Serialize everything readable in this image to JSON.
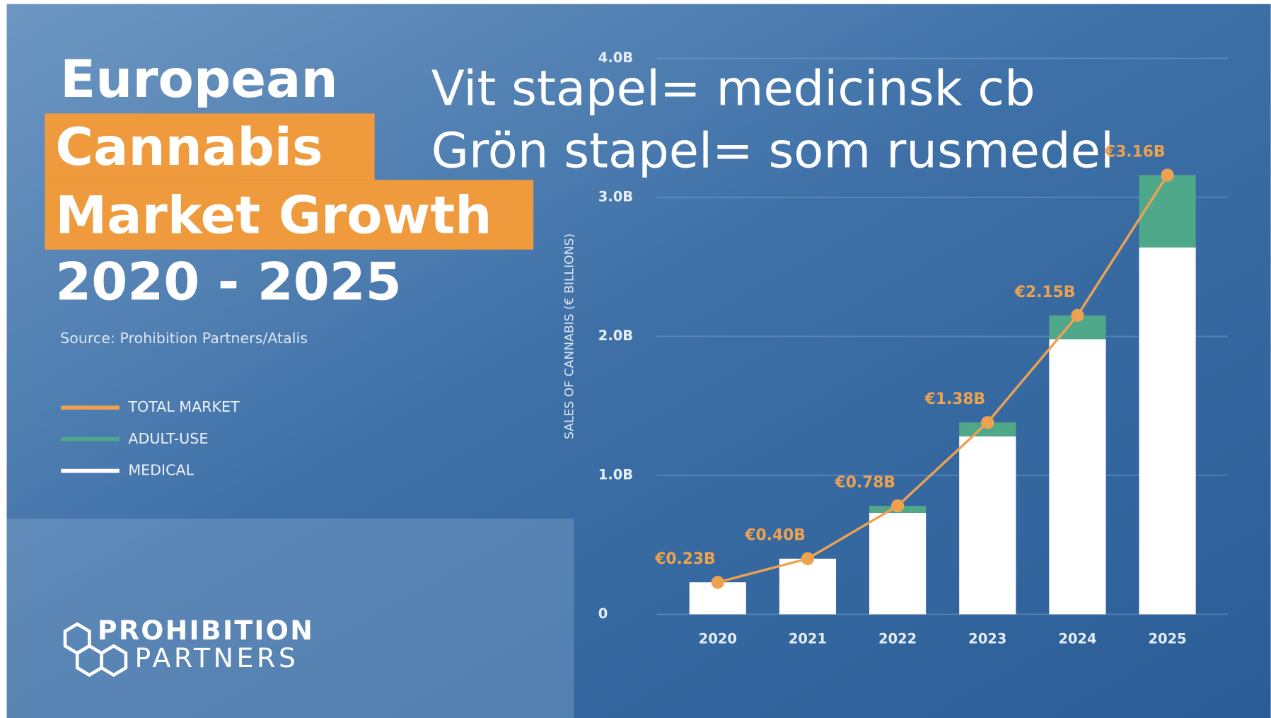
{
  "chart_data": {
    "type": "bar",
    "stacked": true,
    "title_lines": [
      "European",
      "Cannabis",
      "Market Growth"
    ],
    "subtitle": "2020 - 2025",
    "source": "Source: Prohibition Partners/Atalis",
    "annotations": [
      "Vit stapel= medicinsk cb",
      "Grön stapel= som rusmedel"
    ],
    "logo": [
      "PROHIBITION",
      "PARTNERS"
    ],
    "ylabel": "SALES OF CANNABIS (€ BILLIONS)",
    "categories": [
      "2020",
      "2021",
      "2022",
      "2023",
      "2024",
      "2025"
    ],
    "series": [
      {
        "name": "TOTAL MARKET",
        "type": "line",
        "color": "#eea24f",
        "values": [
          0.23,
          0.4,
          0.78,
          1.38,
          2.15,
          3.16
        ],
        "value_labels": [
          "€0.23B",
          "€0.40B",
          "€0.78B",
          "€1.38B",
          "€2.15B",
          "€3.16B"
        ]
      },
      {
        "name": "ADULT-USE",
        "color": "#4fa88a",
        "values": [
          0,
          0,
          0.05,
          0.1,
          0.17,
          0.52
        ]
      },
      {
        "name": "MEDICAL",
        "color": "#ffffff",
        "values": [
          0.23,
          0.4,
          0.73,
          1.28,
          1.98,
          2.64
        ]
      }
    ],
    "ylim": [
      0,
      4
    ],
    "yticks": [
      0,
      {
        "value": 1,
        "label": "1.0B"
      },
      {
        "value": 2,
        "label": "2.0B"
      },
      {
        "value": 3,
        "label": "3.0B"
      },
      {
        "value": 4,
        "label": "4.0B"
      }
    ],
    "grid": true
  }
}
